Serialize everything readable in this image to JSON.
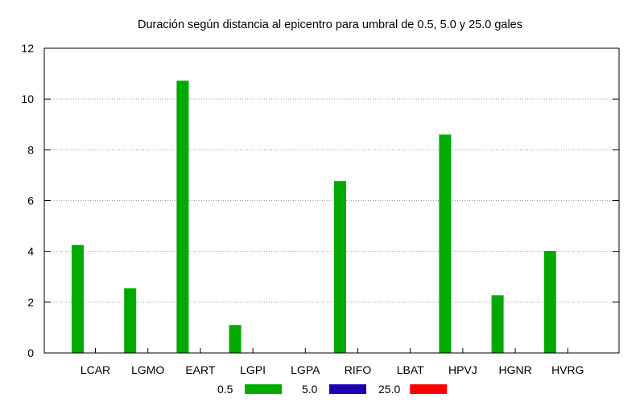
{
  "chart_data": {
    "type": "bar",
    "title": "Duración según distancia al epicentro para umbral de 0.5, 5.0 y 25.0 gales",
    "xlabel": "",
    "ylabel": "",
    "categories": [
      "LCAR",
      "LGMO",
      "EART",
      "LGPI",
      "LGPA",
      "RIFO",
      "LBAT",
      "HPVJ",
      "HGNR",
      "HVRG"
    ],
    "series": [
      {
        "name": "0.5",
        "color": "#00aa00",
        "values": [
          4.25,
          2.55,
          10.72,
          1.1,
          0,
          6.77,
          0,
          8.6,
          2.27,
          4.02
        ]
      },
      {
        "name": "5.0",
        "color": "#1a00b0",
        "values": [
          0,
          0,
          0,
          0,
          0,
          0,
          0,
          0,
          0,
          0
        ]
      },
      {
        "name": "25.0",
        "color": "#ff0000",
        "values": [
          0,
          0,
          0,
          0,
          0,
          0,
          0,
          0,
          0,
          0
        ]
      }
    ],
    "ylim": [
      0,
      12
    ],
    "yticks": [
      "0",
      "2",
      "4",
      "6",
      "8",
      "10",
      "12"
    ],
    "grid": "horizontal dotted",
    "legend_position": "bottom-center"
  }
}
